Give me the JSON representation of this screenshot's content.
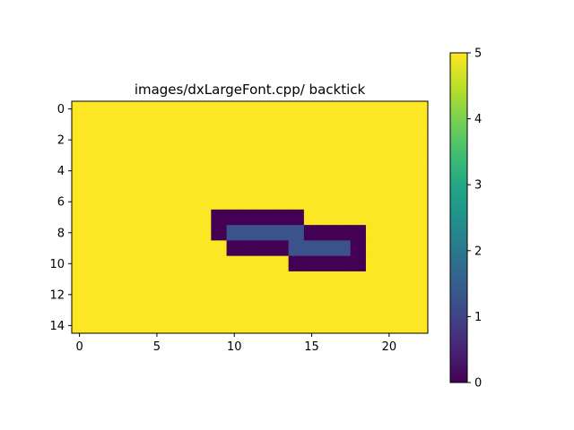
{
  "chart_data": {
    "type": "heatmap",
    "title": "images/dxLargeFont.cpp/ backtick",
    "xlabel": "",
    "ylabel": "",
    "rows": 15,
    "cols": 23,
    "x_ticks": [
      0,
      5,
      10,
      15,
      20
    ],
    "y_ticks": [
      0,
      2,
      4,
      6,
      8,
      10,
      12,
      14
    ],
    "xlim": [
      -0.5,
      22.5
    ],
    "ylim": [
      14.5,
      -0.5
    ],
    "colormap": "viridis",
    "color_range": [
      0,
      5
    ],
    "colorbar_ticks": [
      0,
      1,
      2,
      3,
      4,
      5
    ],
    "colors": {
      "viridis_0": "#440154",
      "viridis_1": "#3b528b",
      "viridis_2": "#21918c",
      "viridis_3": "#5ec962",
      "viridis_5": "#fde725"
    },
    "background_value": 5,
    "cells": [
      {
        "row": 7,
        "col": 9,
        "value": 0
      },
      {
        "row": 7,
        "col": 10,
        "value": 0
      },
      {
        "row": 7,
        "col": 11,
        "value": 0
      },
      {
        "row": 7,
        "col": 12,
        "value": 0
      },
      {
        "row": 7,
        "col": 13,
        "value": 0
      },
      {
        "row": 7,
        "col": 14,
        "value": 0
      },
      {
        "row": 8,
        "col": 9,
        "value": 0
      },
      {
        "row": 8,
        "col": 10,
        "value": 1
      },
      {
        "row": 8,
        "col": 11,
        "value": 1
      },
      {
        "row": 8,
        "col": 12,
        "value": 1
      },
      {
        "row": 8,
        "col": 13,
        "value": 1
      },
      {
        "row": 8,
        "col": 14,
        "value": 1
      },
      {
        "row": 8,
        "col": 15,
        "value": 0
      },
      {
        "row": 8,
        "col": 16,
        "value": 0
      },
      {
        "row": 8,
        "col": 17,
        "value": 0
      },
      {
        "row": 8,
        "col": 18,
        "value": 0
      },
      {
        "row": 9,
        "col": 10,
        "value": 0
      },
      {
        "row": 9,
        "col": 11,
        "value": 0
      },
      {
        "row": 9,
        "col": 12,
        "value": 0
      },
      {
        "row": 9,
        "col": 13,
        "value": 0
      },
      {
        "row": 9,
        "col": 14,
        "value": 1
      },
      {
        "row": 9,
        "col": 15,
        "value": 1
      },
      {
        "row": 9,
        "col": 16,
        "value": 1
      },
      {
        "row": 9,
        "col": 17,
        "value": 1
      },
      {
        "row": 9,
        "col": 18,
        "value": 0
      },
      {
        "row": 10,
        "col": 14,
        "value": 0
      },
      {
        "row": 10,
        "col": 15,
        "value": 0
      },
      {
        "row": 10,
        "col": 16,
        "value": 0
      },
      {
        "row": 10,
        "col": 17,
        "value": 0
      },
      {
        "row": 10,
        "col": 18,
        "value": 0
      }
    ]
  }
}
